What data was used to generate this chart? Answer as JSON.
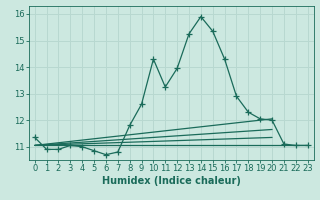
{
  "xlabel": "Humidex (Indice chaleur)",
  "bg_color": "#cce8e0",
  "line_color": "#1a6b5a",
  "grid_color": "#b8d8d0",
  "xlim": [
    -0.5,
    23.5
  ],
  "ylim": [
    10.5,
    16.3
  ],
  "yticks": [
    11,
    12,
    13,
    14,
    15,
    16
  ],
  "xticks": [
    0,
    1,
    2,
    3,
    4,
    5,
    6,
    7,
    8,
    9,
    10,
    11,
    12,
    13,
    14,
    15,
    16,
    17,
    18,
    19,
    20,
    21,
    22,
    23
  ],
  "main_x": [
    0,
    1,
    2,
    3,
    4,
    5,
    6,
    7,
    8,
    9,
    10,
    11,
    12,
    13,
    14,
    15,
    16,
    17,
    18,
    19,
    20,
    21,
    22,
    23
  ],
  "main_y": [
    11.35,
    10.9,
    10.9,
    11.05,
    11.0,
    10.85,
    10.7,
    10.8,
    11.8,
    12.6,
    14.3,
    13.25,
    13.95,
    15.25,
    15.9,
    15.35,
    14.3,
    12.9,
    12.3,
    12.05,
    12.0,
    11.1,
    11.05,
    11.05
  ],
  "trend1_x": [
    0,
    23
  ],
  "trend1_y": [
    11.05,
    11.05
  ],
  "trend2_x": [
    0,
    20
  ],
  "trend2_y": [
    11.05,
    12.05
  ],
  "trend3_x": [
    0,
    20
  ],
  "trend3_y": [
    11.05,
    11.65
  ],
  "trend4_x": [
    0,
    20
  ],
  "trend4_y": [
    11.05,
    11.35
  ],
  "tick_fontsize": 6,
  "label_fontsize": 7
}
